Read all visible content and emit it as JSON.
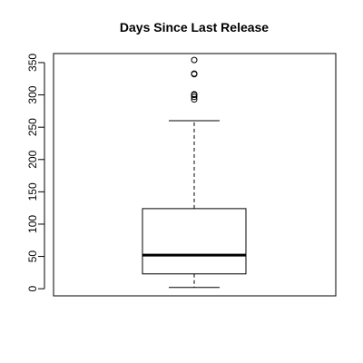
{
  "chart_data": {
    "type": "boxplot",
    "title": "Days Since Last Release",
    "xlabel": "",
    "ylabel": "",
    "ylim": [
      -11,
      364
    ],
    "yticks": [
      0,
      50,
      100,
      150,
      200,
      250,
      300,
      350
    ],
    "box": {
      "min": 2,
      "q1": 23,
      "median": 52,
      "q3": 124,
      "max": 260,
      "outliers": [
        293,
        297,
        300,
        301,
        332,
        333,
        354
      ]
    },
    "grid": false,
    "legend": "none"
  }
}
